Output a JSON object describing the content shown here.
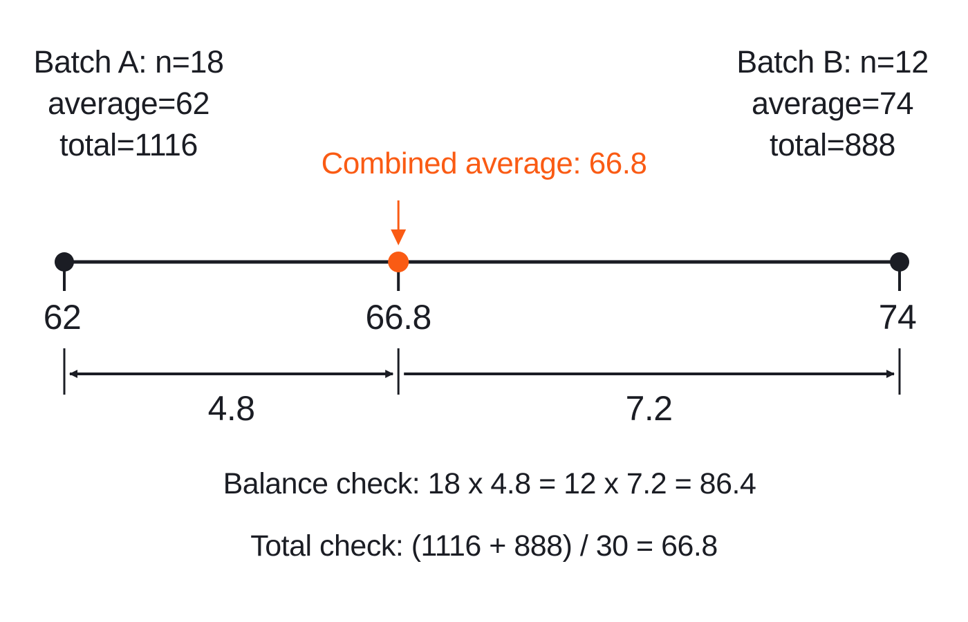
{
  "batch_a": {
    "line1": "Batch A: n=18",
    "line2": "average=62",
    "line3": "total=1116"
  },
  "batch_b": {
    "line1": "Batch B: n=12",
    "line2": "average=74",
    "line3": "total=888"
  },
  "combined": {
    "label": "Combined average: 66.8"
  },
  "axis": {
    "min": 62,
    "max": 74,
    "points": [
      {
        "value": 62,
        "label": "62",
        "kind": "endpoint"
      },
      {
        "value": 66.8,
        "label": "66.8",
        "kind": "combined"
      },
      {
        "value": 74,
        "label": "74",
        "kind": "endpoint"
      }
    ]
  },
  "distances": [
    {
      "from": 62,
      "to": 66.8,
      "label": "4.8"
    },
    {
      "from": 66.8,
      "to": 74,
      "label": "7.2"
    }
  ],
  "checks": {
    "balance": "Balance check: 18 x 4.8 = 12 x 7.2 = 86.4",
    "total": "Total check: (1116 + 888) / 30 = 66.8"
  },
  "colors": {
    "ink": "#1b1d24",
    "accent": "#fa5b14"
  }
}
